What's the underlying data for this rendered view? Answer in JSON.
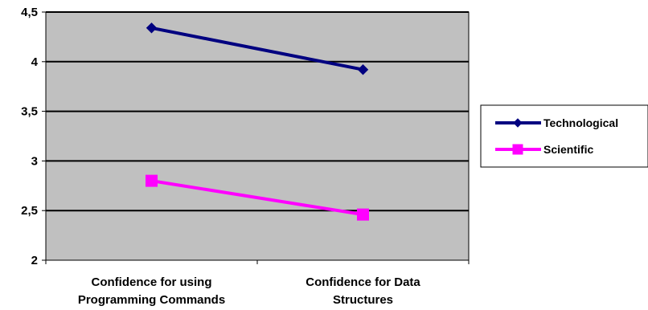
{
  "chart_data": {
    "type": "line",
    "title": "",
    "xlabel": "",
    "ylabel": "",
    "categories": [
      [
        "Confidence for using",
        "Programming Commands"
      ],
      [
        "Confidence for Data",
        "Structures"
      ]
    ],
    "yticks": [
      "2",
      "2,5",
      "3",
      "3,5",
      "4",
      "4,5"
    ],
    "ytick_values": [
      2,
      2.5,
      3,
      3.5,
      4,
      4.5
    ],
    "ylim": [
      2,
      4.5
    ],
    "grid": true,
    "plot_background": "#c0c0c0",
    "legend_position": "right",
    "series": [
      {
        "name": "Technological",
        "values": [
          4.34,
          3.92
        ],
        "color": "#000080",
        "marker": "diamond"
      },
      {
        "name": "Scientific",
        "values": [
          2.8,
          2.46
        ],
        "color": "#ff00ff",
        "marker": "square"
      }
    ]
  }
}
